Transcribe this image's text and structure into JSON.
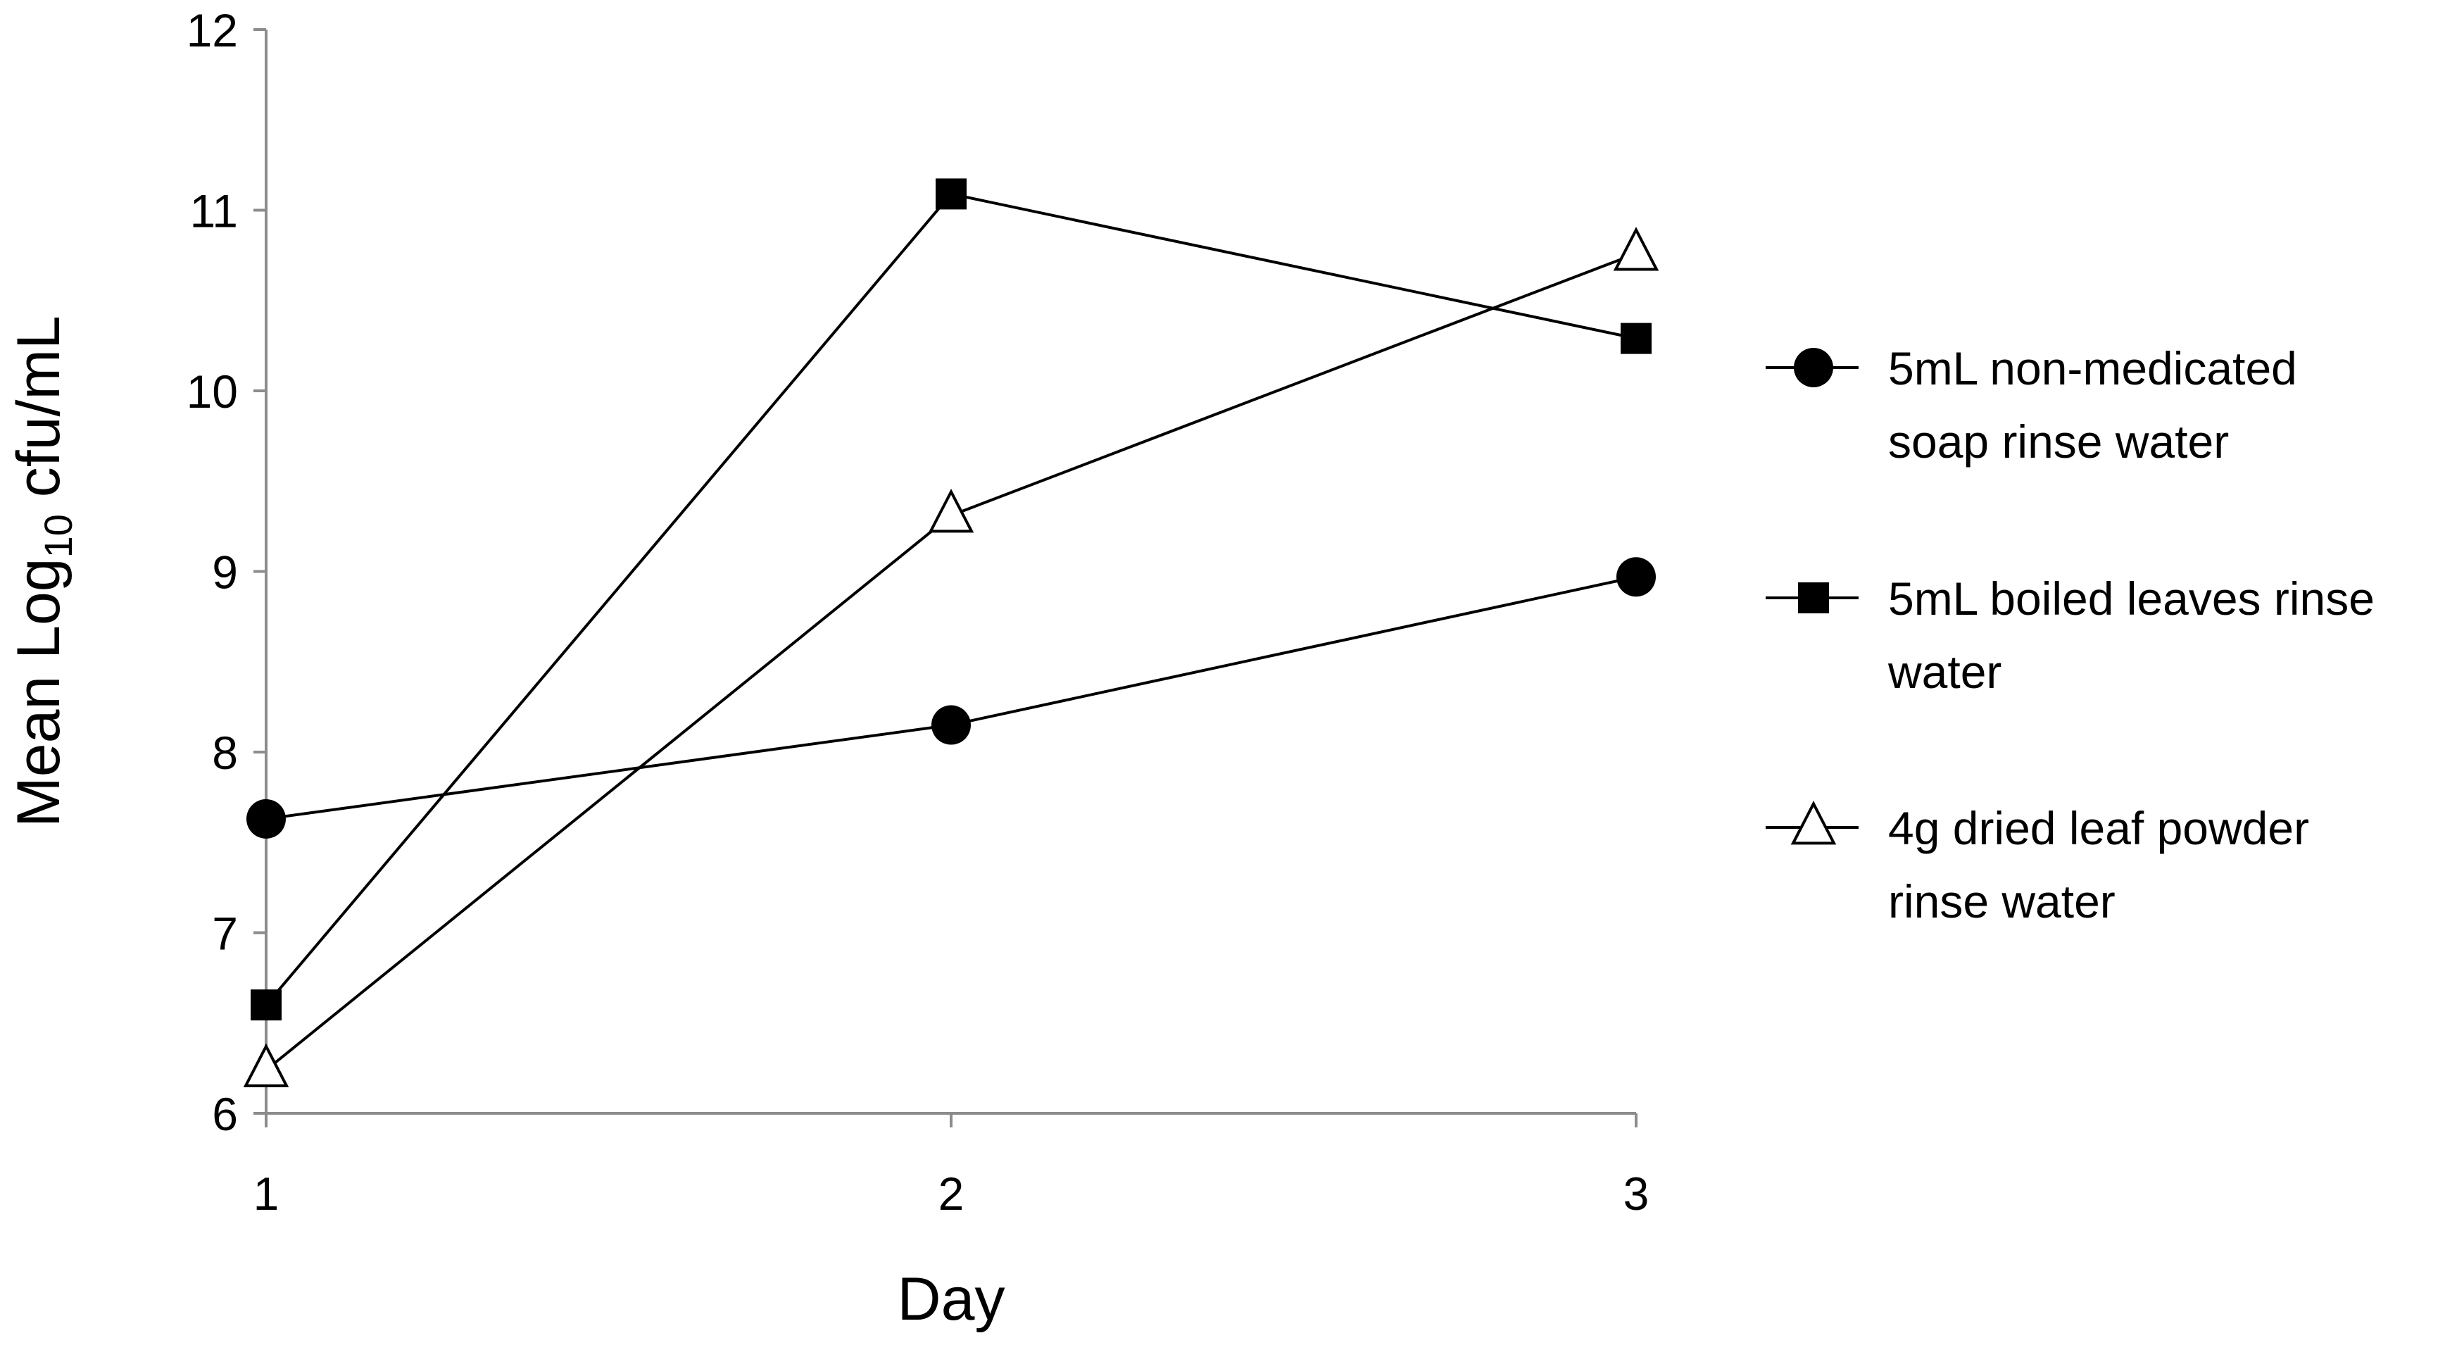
{
  "chart_data": {
    "type": "line",
    "title": "",
    "xlabel": "Day",
    "ylabel": "Mean Log",
    "ylabel_subscript": "10",
    "ylabel_suffix": " cfu/mL",
    "x": [
      1,
      2,
      3
    ],
    "xticks": [
      "1",
      "2",
      "3"
    ],
    "ylim": [
      6,
      12
    ],
    "yticks": [
      "6",
      "7",
      "8",
      "9",
      "10",
      "11",
      "12"
    ],
    "grid": false,
    "legend_position": "right",
    "series": [
      {
        "name": "5mL non-medicated soap rinse water",
        "legend_lines": [
          "5mL non-medicated",
          "soap rinse water"
        ],
        "marker": "circle",
        "color": "#000000",
        "values": [
          7.63,
          8.15,
          8.97
        ]
      },
      {
        "name": "5mL boiled leaves rinse water",
        "legend_lines": [
          "5mL boiled leaves rinse",
          "water"
        ],
        "marker": "square",
        "color": "#000000",
        "values": [
          6.6,
          11.09,
          10.29
        ]
      },
      {
        "name": "4g dried leaf powder rinse water",
        "legend_lines": [
          "4g dried leaf powder",
          "rinse water"
        ],
        "marker": "open-triangle",
        "color": "#000000",
        "values": [
          6.24,
          9.31,
          10.76
        ]
      }
    ]
  }
}
